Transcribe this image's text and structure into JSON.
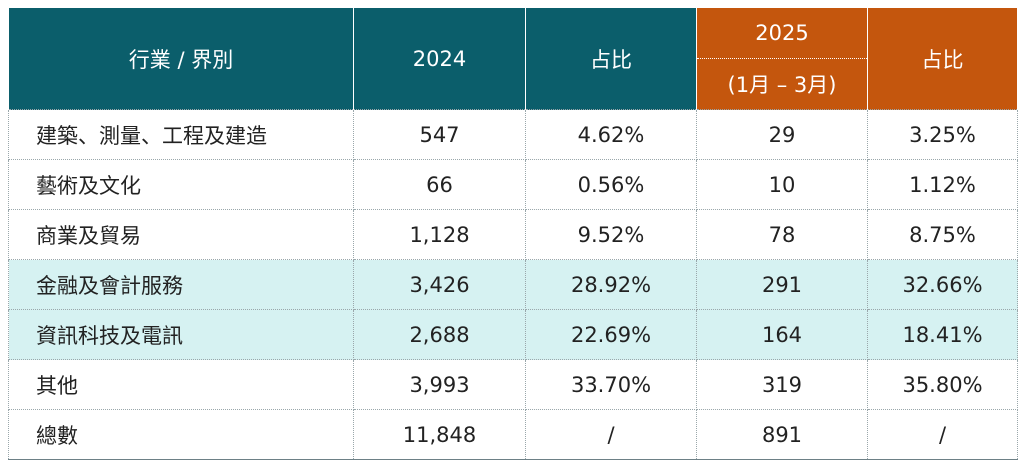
{
  "header": {
    "industry": "行業 / 界別",
    "year1": "2024",
    "share1": "占比",
    "year2": "2025",
    "year2_period": "(1月 – 3月)",
    "share2": "占比"
  },
  "rows": [
    {
      "industry": "建築、測量、工程及建造",
      "v2024": "547",
      "s2024": "4.62%",
      "v2025": "29",
      "s2025": "3.25%",
      "highlight": false
    },
    {
      "industry": "藝術及文化",
      "v2024": "66",
      "s2024": "0.56%",
      "v2025": "10",
      "s2025": "1.12%",
      "highlight": false
    },
    {
      "industry": "商業及貿易",
      "v2024": "1,128",
      "s2024": "9.52%",
      "v2025": "78",
      "s2025": "8.75%",
      "highlight": false
    },
    {
      "industry": "金融及會計服務",
      "v2024": "3,426",
      "s2024": "28.92%",
      "v2025": "291",
      "s2025": "32.66%",
      "highlight": true
    },
    {
      "industry": "資訊科技及電訊",
      "v2024": "2,688",
      "s2024": "22.69%",
      "v2025": "164",
      "s2025": "18.41%",
      "highlight": true
    },
    {
      "industry": "其他",
      "v2024": "3,993",
      "s2024": "33.70%",
      "v2025": "319",
      "s2025": "35.80%",
      "highlight": false
    },
    {
      "industry": "總數",
      "v2024": "11,848",
      "s2024": "/",
      "v2025": "891",
      "s2025": "/",
      "highlight": false
    }
  ],
  "colors": {
    "header_teal": "#0b5e6b",
    "header_orange": "#c4560d",
    "highlight_row": "#d6f2f2"
  }
}
